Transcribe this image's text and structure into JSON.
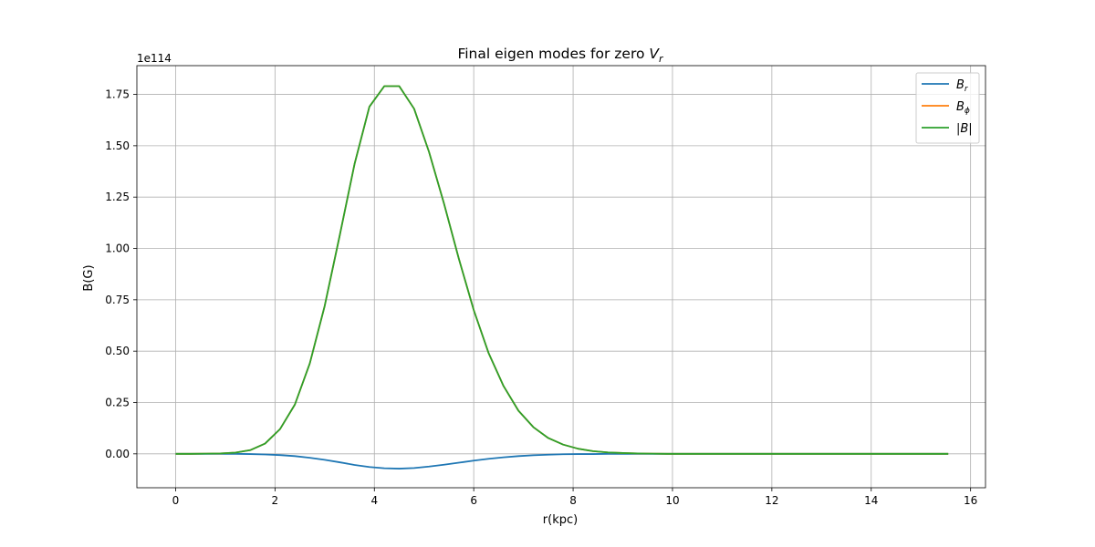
{
  "chart_data": {
    "type": "line",
    "title": {
      "main": "Final eigen modes for zero ",
      "symbol": "V",
      "sub": "r"
    },
    "xlabel": "r(kpc)",
    "ylabel": "B(G)",
    "y_offset_label": "1e114",
    "xlim": [
      -0.78,
      16.3
    ],
    "ylim": [
      -0.165,
      1.89
    ],
    "x_ticks": [
      0,
      2,
      4,
      6,
      8,
      10,
      12,
      14,
      16
    ],
    "x_tick_labels": [
      "0",
      "2",
      "4",
      "6",
      "8",
      "10",
      "12",
      "14",
      "16"
    ],
    "y_ticks": [
      0,
      0.25,
      0.5,
      0.75,
      1.0,
      1.25,
      1.5,
      1.75
    ],
    "y_tick_labels": [
      "0.00",
      "0.25",
      "0.50",
      "0.75",
      "1.00",
      "1.25",
      "1.50",
      "1.75"
    ],
    "grid": true,
    "legend_position": "top-right",
    "x": [
      0,
      0.3,
      0.6,
      0.9,
      1.2,
      1.5,
      1.8,
      2.1,
      2.4,
      2.7,
      3.0,
      3.3,
      3.6,
      3.9,
      4.2,
      4.5,
      4.8,
      5.1,
      5.4,
      5.7,
      6.0,
      6.3,
      6.6,
      6.9,
      7.2,
      7.5,
      7.8,
      8.1,
      8.4,
      8.7,
      9.0,
      9.3,
      9.6,
      9.9,
      10.2,
      10.8,
      11.4,
      12.0,
      12.6,
      13.2,
      13.8,
      14.4,
      15.0,
      15.55
    ],
    "series": [
      {
        "name": "B",
        "sub": "r",
        "color": "#1f77b4",
        "values": [
          0,
          0,
          0,
          0,
          0,
          -0.001,
          -0.003,
          -0.006,
          -0.011,
          -0.019,
          -0.029,
          -0.041,
          -0.054,
          -0.064,
          -0.07,
          -0.072,
          -0.069,
          -0.062,
          -0.053,
          -0.043,
          -0.033,
          -0.024,
          -0.017,
          -0.011,
          -0.007,
          -0.004,
          -0.002,
          -0.001,
          -0.001,
          0,
          0,
          0,
          0,
          0,
          0,
          0,
          0,
          0,
          0,
          0,
          0,
          0,
          0,
          0
        ]
      },
      {
        "name": "B",
        "sub": "ϕ",
        "color": "#ff7f0e",
        "values": [
          0,
          0,
          0.001,
          0.002,
          0.006,
          0.018,
          0.05,
          0.12,
          0.24,
          0.44,
          0.72,
          1.06,
          1.41,
          1.69,
          1.79,
          1.79,
          1.68,
          1.47,
          1.22,
          0.95,
          0.7,
          0.49,
          0.33,
          0.21,
          0.13,
          0.077,
          0.045,
          0.025,
          0.013,
          0.007,
          0.004,
          0.002,
          0.001,
          0,
          0,
          0,
          0,
          0,
          0,
          0,
          0,
          0,
          0,
          0
        ]
      },
      {
        "name": "|B|",
        "sub": "",
        "color": "#2ca02c",
        "values": [
          0,
          0,
          0.001,
          0.002,
          0.006,
          0.018,
          0.05,
          0.12,
          0.24,
          0.44,
          0.72,
          1.06,
          1.41,
          1.69,
          1.79,
          1.79,
          1.68,
          1.47,
          1.22,
          0.95,
          0.7,
          0.49,
          0.33,
          0.21,
          0.13,
          0.077,
          0.045,
          0.025,
          0.013,
          0.007,
          0.004,
          0.002,
          0.001,
          0,
          0,
          0,
          0,
          0,
          0,
          0,
          0,
          0,
          0,
          0
        ]
      }
    ]
  }
}
